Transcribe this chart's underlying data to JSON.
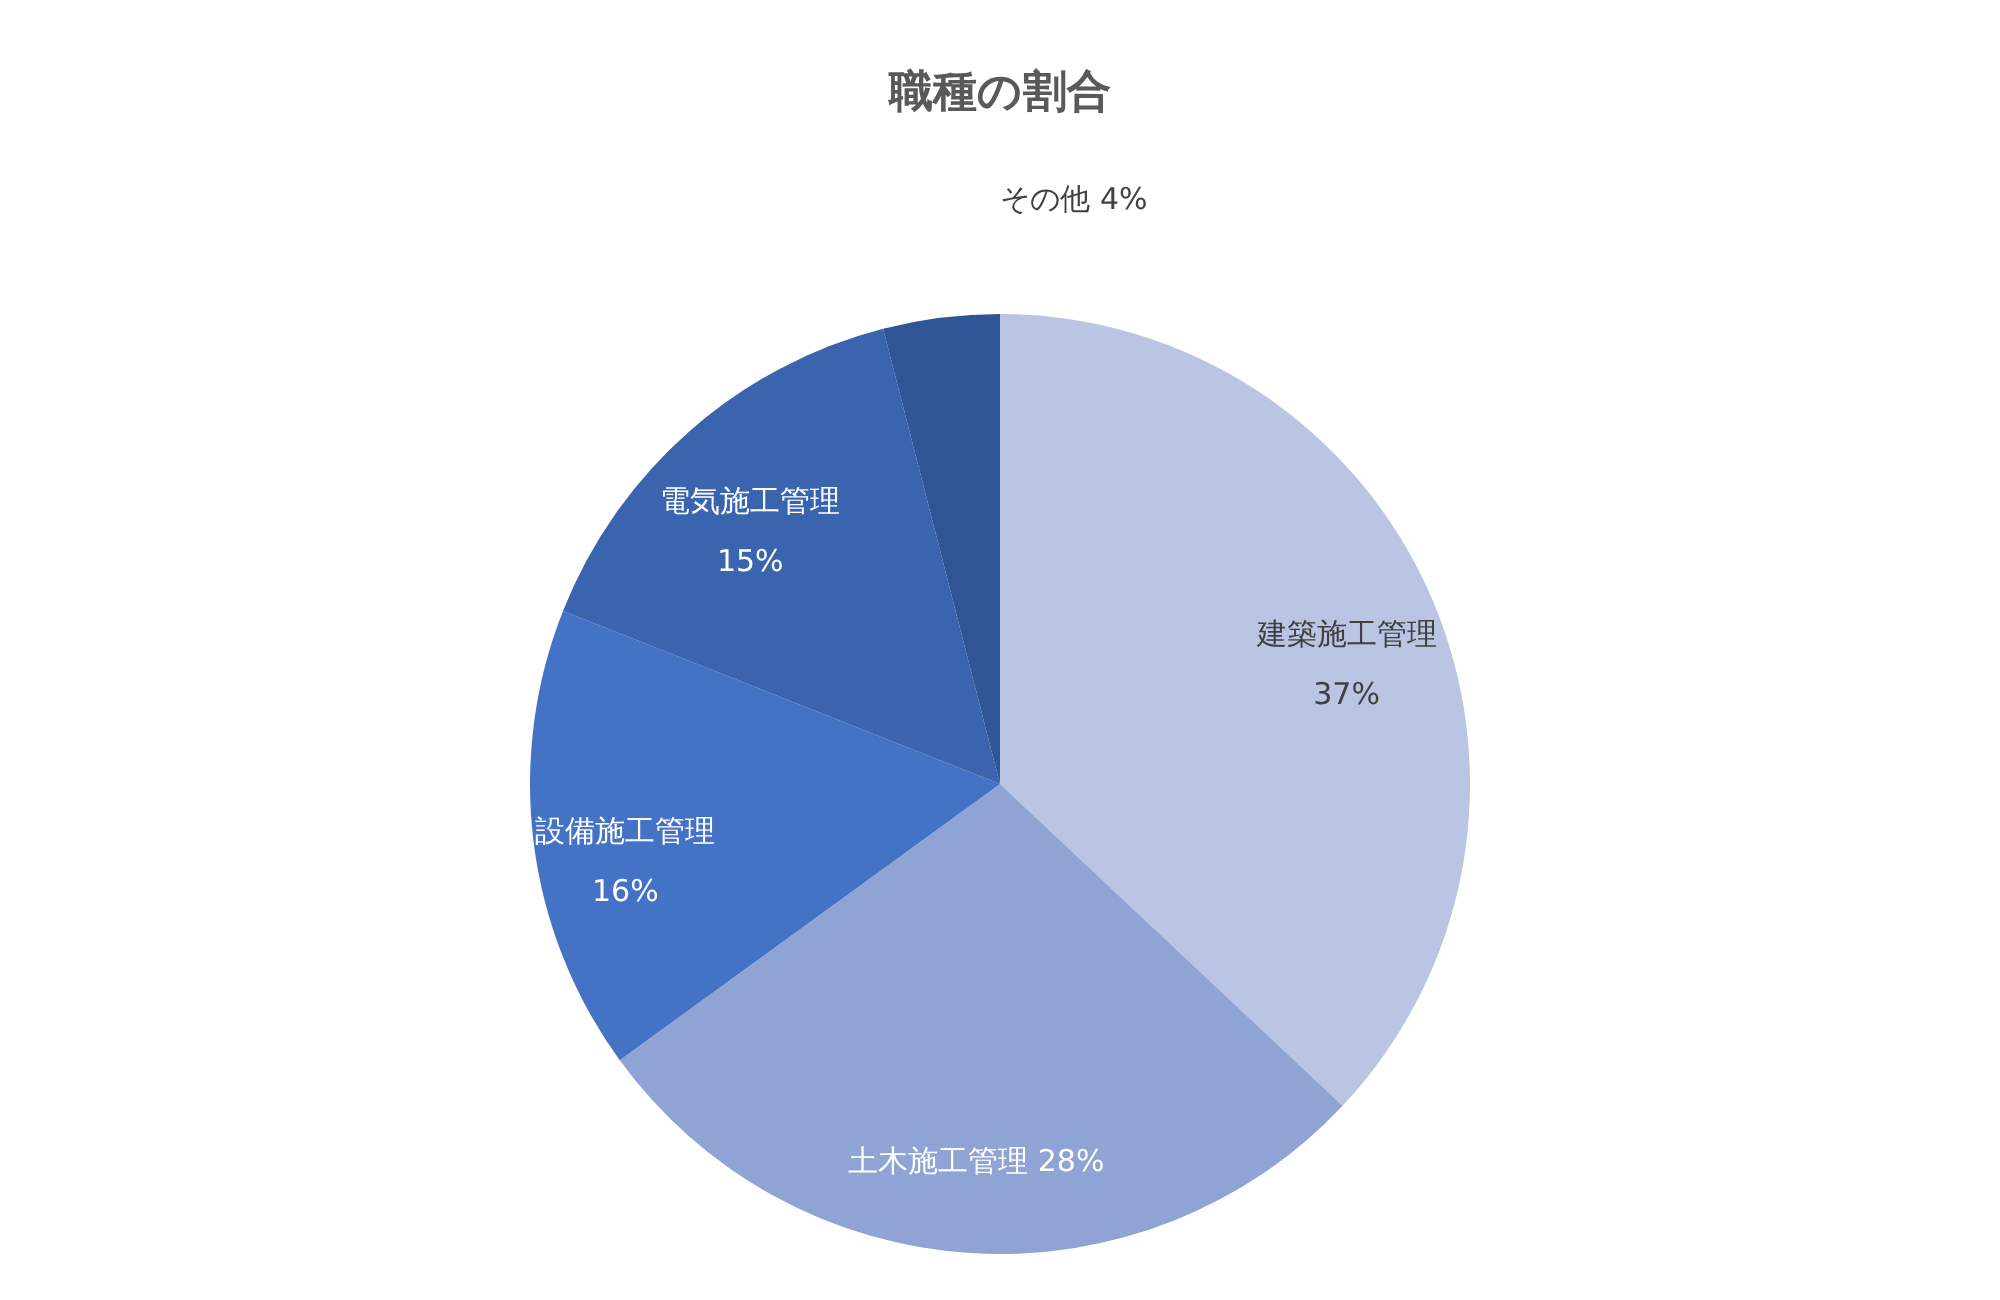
{
  "chart_data": {
    "type": "pie",
    "title": "職種の割合",
    "categories": [
      "建築施工管理",
      "土木施工管理",
      "設備施工管理",
      "電気施工管理",
      "その他"
    ],
    "values": [
      37,
      28,
      16,
      15,
      4
    ],
    "value_labels": [
      "37%",
      "28%",
      "16%",
      "15%",
      "4%"
    ],
    "colors": [
      "#bac4e3",
      "#8fa3d5",
      "#4472c4",
      "#3a64ad",
      "#2f5597"
    ],
    "legend": false
  }
}
